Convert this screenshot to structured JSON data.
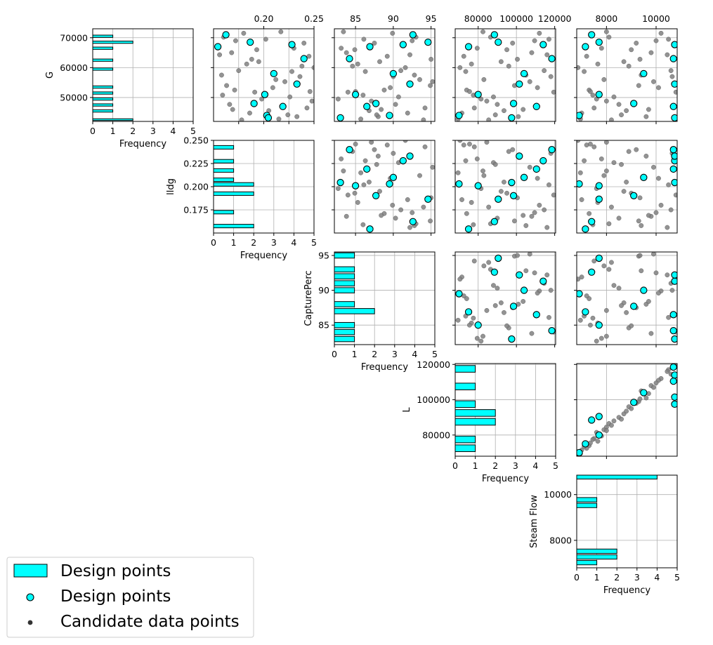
{
  "chart_data": {
    "type": "scatter",
    "title": "",
    "variables": [
      {
        "name": "G",
        "lim": [
          42000,
          73000
        ],
        "ticks": [
          50000,
          60000,
          70000
        ],
        "tick_labels": [
          "50000",
          "60000",
          "70000"
        ]
      },
      {
        "name": "lldg",
        "lim": [
          0.15,
          0.25
        ],
        "ticks": [
          0.175,
          0.2,
          0.225,
          0.25
        ],
        "tick_labels": [
          "0.175",
          "0.200",
          "0.225",
          "0.250"
        ],
        "top_tick_labels": [
          "0.20",
          "0.25"
        ],
        "top_ticks": [
          0.2,
          0.25
        ]
      },
      {
        "name": "CapturePerc",
        "lim": [
          82.2,
          95.5
        ],
        "ticks": [
          85,
          90,
          95
        ],
        "tick_labels": [
          "85",
          "90",
          "95"
        ]
      },
      {
        "name": "L",
        "lim": [
          68000,
          120500
        ],
        "ticks": [
          80000,
          100000,
          120000
        ],
        "tick_labels": [
          "80000",
          "100000",
          "120000"
        ]
      },
      {
        "name": "Steam Flow",
        "lim": [
          6800,
          10850
        ],
        "ticks": [
          8000,
          10000
        ],
        "tick_labels": [
          "8000",
          "10000"
        ]
      }
    ],
    "histogram": {
      "xlabel": "Frequency",
      "xlim": [
        0,
        5
      ],
      "xticks": [
        0,
        1,
        2,
        3,
        4,
        5
      ],
      "tick_labels": [
        "0",
        "1",
        "2",
        "3",
        "4",
        "5"
      ],
      "bins": [
        {
          "edges": [
            42200,
            43000,
            44000,
            45000,
            46000,
            47000,
            48000,
            49000,
            50000,
            51000,
            52000,
            53000,
            54000,
            55000,
            56000,
            57000,
            58000,
            59000,
            60000,
            61000,
            62000,
            63000,
            64000,
            65000,
            66000,
            67000,
            68000,
            69000,
            70000,
            71000
          ],
          "counts": [
            2,
            0,
            0,
            1,
            0,
            1,
            0,
            1,
            0,
            1,
            0,
            1,
            0,
            0,
            0,
            0,
            0,
            1,
            0,
            0,
            1,
            0,
            0,
            0,
            1,
            0,
            2,
            0,
            1
          ]
        },
        {
          "edges": [
            0.155,
            0.16,
            0.165,
            0.17,
            0.175,
            0.18,
            0.185,
            0.19,
            0.195,
            0.2,
            0.205,
            0.21,
            0.215,
            0.22,
            0.225,
            0.23,
            0.235,
            0.24,
            0.245,
            0.25
          ],
          "counts": [
            2,
            0,
            0,
            1,
            0,
            0,
            0,
            2,
            0,
            2,
            1,
            0,
            1,
            0,
            1,
            0,
            0,
            1,
            0
          ]
        },
        {
          "edges": [
            82.5,
            83.5,
            84.5,
            85.5,
            86.5,
            87.5,
            88.5,
            89.5,
            90.5,
            91.5,
            92.5,
            93.5,
            94.5,
            95.5
          ],
          "counts": [
            1,
            1,
            1,
            0,
            2,
            1,
            0,
            1,
            1,
            1,
            1,
            0,
            1
          ]
        },
        {
          "edges": [
            70000,
            75000,
            80000,
            85000,
            90000,
            95000,
            100000,
            105000,
            110000,
            115000,
            120000
          ],
          "counts": [
            1,
            1,
            0,
            2,
            2,
            1,
            0,
            1,
            0,
            1
          ]
        },
        {
          "edges": [
            6900,
            7150,
            7400,
            7650,
            7900,
            8150,
            8400,
            8650,
            8900,
            9150,
            9400,
            9650,
            9900,
            10150,
            10400,
            10650,
            10900
          ],
          "counts": [
            1,
            2,
            2,
            0,
            0,
            0,
            0,
            0,
            0,
            0,
            1,
            1,
            0,
            0,
            0,
            4
          ]
        }
      ]
    },
    "design_points": [
      {
        "G": 71000,
        "lldg": 0.1623,
        "CapturePerc": 92.6,
        "L": 88500,
        "Steam Flow": 7400
      },
      {
        "G": 67000,
        "lldg": 0.1543,
        "CapturePerc": 86.9,
        "L": 75000,
        "Steam Flow": 7150
      },
      {
        "G": 68500,
        "lldg": 0.1865,
        "CapturePerc": 94.6,
        "L": 90500,
        "Steam Flow": 7700
      },
      {
        "G": 67700,
        "lldg": 0.228,
        "CapturePerc": 91.3,
        "L": 114000,
        "Steam Flow": 10750
      },
      {
        "G": 63000,
        "lldg": 0.24,
        "CapturePerc": 84.2,
        "L": 118500,
        "Steam Flow": 10700
      },
      {
        "G": 58000,
        "lldg": 0.21,
        "CapturePerc": 90.0,
        "L": 104000,
        "Steam Flow": 9500
      },
      {
        "G": 54500,
        "lldg": 0.233,
        "CapturePerc": 92.2,
        "L": 101500,
        "Steam Flow": 10750
      },
      {
        "G": 51000,
        "lldg": 0.201,
        "CapturePerc": 85.0,
        "L": 80000,
        "Steam Flow": 7700
      },
      {
        "G": 48000,
        "lldg": 0.1903,
        "CapturePerc": 87.7,
        "L": 98500,
        "Steam Flow": 9100
      },
      {
        "G": 44000,
        "lldg": 0.203,
        "CapturePerc": 89.5,
        "L": 70000,
        "Steam Flow": 6900
      },
      {
        "G": 47000,
        "lldg": 0.219,
        "CapturePerc": 86.5,
        "L": 110500,
        "Steam Flow": 10700
      },
      {
        "G": 43200,
        "lldg": 0.2045,
        "CapturePerc": 83.0,
        "L": 97500,
        "Steam Flow": 10750
      }
    ],
    "candidate_points": [
      {
        "G": 56000,
        "lldg": 0.212,
        "CapturePerc": 93.5,
        "L": 83000,
        "Steam Flow": 7900
      },
      {
        "G": 52500,
        "lldg": 0.171,
        "CapturePerc": 88.8,
        "L": 74000,
        "Steam Flow": 7300
      },
      {
        "G": 60500,
        "lldg": 0.238,
        "CapturePerc": 84.6,
        "L": 96000,
        "Steam Flow": 8900
      },
      {
        "G": 44800,
        "lldg": 0.186,
        "CapturePerc": 91.9,
        "L": 71500,
        "Steam Flow": 7000
      },
      {
        "G": 69500,
        "lldg": 0.202,
        "CapturePerc": 86.1,
        "L": 117000,
        "Steam Flow": 10500
      },
      {
        "G": 46500,
        "lldg": 0.243,
        "CapturePerc": 94.2,
        "L": 78000,
        "Steam Flow": 7500
      },
      {
        "G": 65000,
        "lldg": 0.168,
        "CapturePerc": 83.8,
        "L": 108000,
        "Steam Flow": 9800
      },
      {
        "G": 50200,
        "lldg": 0.226,
        "CapturePerc": 90.7,
        "L": 88000,
        "Steam Flow": 8300
      },
      {
        "G": 62000,
        "lldg": 0.195,
        "CapturePerc": 88.2,
        "L": 92000,
        "Steam Flow": 8700
      },
      {
        "G": 57500,
        "lldg": 0.158,
        "CapturePerc": 92.8,
        "L": 105000,
        "Steam Flow": 9400
      },
      {
        "G": 42800,
        "lldg": 0.215,
        "CapturePerc": 85.7,
        "L": 69500,
        "Steam Flow": 6950
      },
      {
        "G": 71500,
        "lldg": 0.18,
        "CapturePerc": 89.9,
        "L": 112000,
        "Steam Flow": 10200
      },
      {
        "G": 48800,
        "lldg": 0.248,
        "CapturePerc": 87.1,
        "L": 84500,
        "Steam Flow": 8000
      },
      {
        "G": 54000,
        "lldg": 0.163,
        "CapturePerc": 94.9,
        "L": 99000,
        "Steam Flow": 9300
      },
      {
        "G": 66500,
        "lldg": 0.23,
        "CapturePerc": 83.1,
        "L": 79500,
        "Steam Flow": 7800
      },
      {
        "G": 59000,
        "lldg": 0.175,
        "CapturePerc": 91.0,
        "L": 114500,
        "Steam Flow": 10600
      },
      {
        "G": 45600,
        "lldg": 0.205,
        "CapturePerc": 86.8,
        "L": 93500,
        "Steam Flow": 8800
      },
      {
        "G": 63800,
        "lldg": 0.245,
        "CapturePerc": 89.2,
        "L": 72500,
        "Steam Flow": 7200
      },
      {
        "G": 51800,
        "lldg": 0.191,
        "CapturePerc": 84.0,
        "L": 119500,
        "Steam Flow": 10800
      },
      {
        "G": 70200,
        "lldg": 0.16,
        "CapturePerc": 93.0,
        "L": 86500,
        "Steam Flow": 8100
      },
      {
        "G": 43600,
        "lldg": 0.233,
        "CapturePerc": 88.0,
        "L": 101000,
        "Steam Flow": 9600
      },
      {
        "G": 61200,
        "lldg": 0.183,
        "CapturePerc": 85.3,
        "L": 76500,
        "Steam Flow": 7650
      },
      {
        "G": 55300,
        "lldg": 0.221,
        "CapturePerc": 95.2,
        "L": 107000,
        "Steam Flow": 9900
      },
      {
        "G": 47700,
        "lldg": 0.166,
        "CapturePerc": 90.3,
        "L": 90000,
        "Steam Flow": 8500
      },
      {
        "G": 68200,
        "lldg": 0.24,
        "CapturePerc": 87.5,
        "L": 98000,
        "Steam Flow": 9200
      },
      {
        "G": 49500,
        "lldg": 0.198,
        "CapturePerc": 82.7,
        "L": 81500,
        "Steam Flow": 7600
      },
      {
        "G": 64300,
        "lldg": 0.156,
        "CapturePerc": 92.2,
        "L": 116000,
        "Steam Flow": 10450
      },
      {
        "G": 58700,
        "lldg": 0.228,
        "CapturePerc": 86.3,
        "L": 73500,
        "Steam Flow": 7100
      },
      {
        "G": 53300,
        "lldg": 0.209,
        "CapturePerc": 89.6,
        "L": 111000,
        "Steam Flow": 10100
      },
      {
        "G": 42500,
        "lldg": 0.178,
        "CapturePerc": 94.0,
        "L": 85500,
        "Steam Flow": 8200
      },
      {
        "G": 66000,
        "lldg": 0.193,
        "CapturePerc": 84.9,
        "L": 95000,
        "Steam Flow": 9000
      },
      {
        "G": 60000,
        "lldg": 0.25,
        "CapturePerc": 91.6,
        "L": 70500,
        "Steam Flow": 6850
      },
      {
        "G": 46000,
        "lldg": 0.169,
        "CapturePerc": 88.4,
        "L": 103500,
        "Steam Flow": 9700
      },
      {
        "G": 72000,
        "lldg": 0.217,
        "CapturePerc": 83.4,
        "L": 82500,
        "Steam Flow": 8000
      },
      {
        "G": 57000,
        "lldg": 0.236,
        "CapturePerc": 90.0,
        "L": 118000,
        "Steam Flow": 10650
      },
      {
        "G": 50800,
        "lldg": 0.159,
        "CapturePerc": 86.0,
        "L": 77500,
        "Steam Flow": 7450
      },
      {
        "G": 62800,
        "lldg": 0.188,
        "CapturePerc": 95.0,
        "L": 100500,
        "Steam Flow": 9350
      },
      {
        "G": 44200,
        "lldg": 0.224,
        "CapturePerc": 87.8,
        "L": 89000,
        "Steam Flow": 8600
      },
      {
        "G": 69000,
        "lldg": 0.172,
        "CapturePerc": 92.5,
        "L": 109500,
        "Steam Flow": 10000
      },
      {
        "G": 52000,
        "lldg": 0.246,
        "CapturePerc": 85.0,
        "L": 75500,
        "Steam Flow": 7350
      }
    ],
    "legend": {
      "placement": "bottom-left",
      "entries": [
        {
          "label": "Design points",
          "kind": "histogram-patch"
        },
        {
          "label": "Design points",
          "kind": "design-marker"
        },
        {
          "label": "Candidate data points",
          "kind": "candidate-marker"
        }
      ]
    },
    "colors": {
      "design_fill": "#00ffff",
      "design_edge": "#000000",
      "candidate": "#808080",
      "grid": "#b0b0b0",
      "axis": "#000000"
    },
    "grid": true
  }
}
